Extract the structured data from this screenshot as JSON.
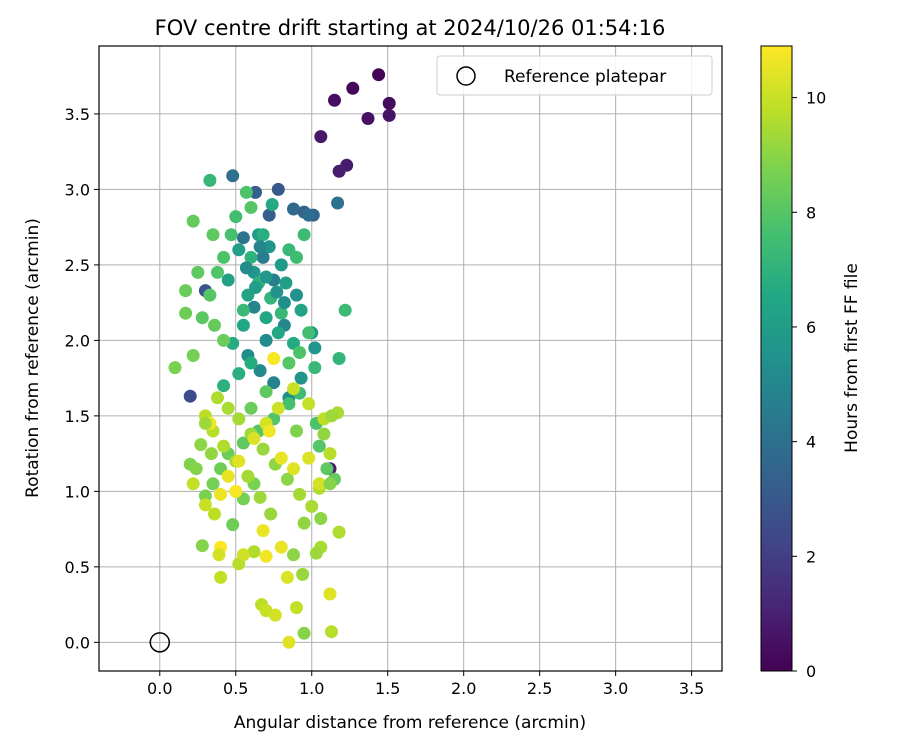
{
  "chart_data": {
    "type": "scatter",
    "title": "FOV centre drift starting at 2024/10/26 01:54:16",
    "xlabel": "Angular distance from reference (arcmin)",
    "ylabel": "Rotation from reference (arcmin)",
    "xlim": [
      -0.4,
      3.7
    ],
    "ylim": [
      -0.19,
      3.95
    ],
    "x_ticks": [
      "0.0",
      "0.5",
      "1.0",
      "1.5",
      "2.0",
      "2.5",
      "3.0",
      "3.5"
    ],
    "y_ticks": [
      "0.0",
      "0.5",
      "1.0",
      "1.5",
      "2.0",
      "2.5",
      "3.0",
      "3.5"
    ],
    "grid": true,
    "legend_position": "top-right",
    "legend": {
      "label": "Reference platepar",
      "marker": "open-circle"
    },
    "reference_point": {
      "x": 0.0,
      "y": 0.0
    },
    "colorbar": {
      "label": "Hours from first FF file",
      "range": [
        0,
        10.9
      ],
      "ticks": [
        "0",
        "2",
        "4",
        "6",
        "8",
        "10"
      ],
      "colormap": "viridis"
    },
    "series": [
      {
        "points": [
          [
            1.44,
            3.76,
            0.1
          ],
          [
            1.27,
            3.67,
            0.2
          ],
          [
            1.51,
            3.57,
            0.3
          ],
          [
            1.15,
            3.59,
            0.4
          ],
          [
            1.37,
            3.47,
            0.5
          ],
          [
            1.51,
            3.49,
            0.6
          ],
          [
            1.06,
            3.35,
            0.7
          ],
          [
            1.23,
            3.16,
            0.8
          ],
          [
            1.18,
            3.12,
            0.9
          ],
          [
            1.12,
            1.15,
            0.9
          ],
          [
            0.2,
            1.63,
            2.6
          ],
          [
            0.3,
            2.33,
            2.8
          ],
          [
            0.78,
            3.0,
            3.0
          ],
          [
            0.72,
            2.83,
            3.2
          ],
          [
            0.95,
            2.85,
            3.4
          ],
          [
            0.48,
            3.09,
            4.0
          ],
          [
            1.17,
            2.91,
            4.1
          ],
          [
            1.01,
            2.83,
            3.5
          ],
          [
            0.63,
            2.98,
            3.3
          ],
          [
            0.88,
            2.87,
            3.7
          ],
          [
            0.98,
            2.83,
            3.9
          ],
          [
            0.55,
            2.68,
            4.2
          ],
          [
            0.68,
            2.55,
            4.5
          ],
          [
            0.75,
            2.4,
            4.7
          ],
          [
            0.62,
            2.22,
            4.9
          ],
          [
            0.82,
            2.1,
            5.0
          ],
          [
            0.7,
            2.0,
            5.2
          ],
          [
            0.58,
            1.9,
            5.3
          ],
          [
            0.66,
            1.8,
            5.1
          ],
          [
            0.75,
            1.72,
            4.8
          ],
          [
            0.85,
            1.62,
            5.4
          ],
          [
            0.93,
            1.75,
            5.6
          ],
          [
            1.02,
            1.95,
            5.7
          ],
          [
            1.0,
            2.05,
            5.8
          ],
          [
            0.9,
            2.3,
            5.5
          ],
          [
            0.8,
            2.5,
            5.9
          ],
          [
            0.65,
            2.7,
            6.0
          ],
          [
            0.52,
            2.6,
            6.1
          ],
          [
            0.45,
            2.4,
            6.2
          ],
          [
            0.58,
            2.3,
            6.3
          ],
          [
            0.7,
            2.15,
            6.4
          ],
          [
            0.78,
            2.05,
            6.5
          ],
          [
            0.88,
            1.98,
            6.6
          ],
          [
            0.6,
            1.85,
            6.7
          ],
          [
            0.52,
            1.78,
            6.8
          ],
          [
            0.42,
            1.7,
            6.9
          ],
          [
            0.72,
            2.62,
            5.6
          ],
          [
            0.62,
            2.45,
            5.7
          ],
          [
            0.83,
            2.38,
            6.1
          ],
          [
            0.93,
            2.2,
            6.3
          ],
          [
            0.55,
            2.1,
            6.5
          ],
          [
            0.48,
            1.98,
            6.7
          ],
          [
            0.65,
            2.38,
            7.0
          ],
          [
            0.73,
            2.28,
            7.1
          ],
          [
            0.8,
            2.18,
            7.2
          ],
          [
            0.85,
            2.6,
            7.3
          ],
          [
            0.95,
            2.7,
            7.4
          ],
          [
            0.9,
            2.55,
            7.5
          ],
          [
            0.5,
            2.82,
            7.6
          ],
          [
            0.47,
            2.7,
            7.7
          ],
          [
            0.42,
            2.55,
            7.8
          ],
          [
            0.38,
            2.45,
            7.9
          ],
          [
            0.33,
            2.3,
            8.0
          ],
          [
            0.28,
            2.15,
            8.1
          ],
          [
            0.25,
            2.45,
            8.2
          ],
          [
            0.22,
            2.79,
            8.3
          ],
          [
            0.17,
            2.33,
            8.4
          ],
          [
            0.17,
            2.18,
            8.5
          ],
          [
            0.22,
            1.9,
            8.6
          ],
          [
            0.1,
            1.82,
            8.7
          ],
          [
            0.33,
            3.06,
            7.2
          ],
          [
            0.57,
            2.98,
            7.8
          ],
          [
            0.6,
            2.88,
            8.0
          ],
          [
            0.35,
            2.7,
            8.2
          ],
          [
            0.36,
            2.1,
            8.3
          ],
          [
            0.42,
            2.0,
            8.4
          ],
          [
            1.22,
            2.2,
            7.4
          ],
          [
            1.18,
            1.88,
            7.1
          ],
          [
            1.02,
            1.82,
            7.3
          ],
          [
            0.92,
            1.65,
            7.5
          ],
          [
            0.85,
            1.58,
            7.7
          ],
          [
            0.75,
            1.48,
            7.9
          ],
          [
            0.65,
            1.4,
            8.0
          ],
          [
            0.55,
            1.32,
            8.2
          ],
          [
            0.45,
            1.25,
            8.4
          ],
          [
            0.4,
            1.15,
            8.5
          ],
          [
            0.35,
            1.05,
            8.6
          ],
          [
            0.3,
            0.97,
            8.7
          ],
          [
            0.2,
            1.18,
            8.8
          ],
          [
            0.28,
            0.64,
            8.9
          ],
          [
            0.95,
            0.06,
            8.9
          ],
          [
            1.03,
            1.45,
            7.8
          ],
          [
            1.05,
            1.3,
            8.0
          ],
          [
            1.1,
            1.15,
            8.2
          ],
          [
            1.15,
            1.08,
            8.3
          ],
          [
            0.48,
            0.78,
            8.5
          ],
          [
            0.55,
            0.95,
            8.6
          ],
          [
            0.62,
            1.05,
            8.7
          ],
          [
            0.9,
            1.4,
            8.8
          ],
          [
            0.88,
            0.58,
            9.0
          ],
          [
            0.95,
            0.79,
            9.1
          ],
          [
            0.73,
            0.85,
            9.2
          ],
          [
            0.66,
            0.96,
            9.3
          ],
          [
            0.58,
            1.1,
            9.4
          ],
          [
            0.5,
            1.2,
            9.5
          ],
          [
            0.42,
            1.3,
            9.6
          ],
          [
            0.35,
            1.4,
            9.7
          ],
          [
            0.3,
            1.5,
            9.8
          ],
          [
            0.38,
            1.62,
            9.6
          ],
          [
            0.45,
            1.55,
            9.5
          ],
          [
            0.52,
            1.48,
            9.4
          ],
          [
            0.6,
            1.38,
            9.3
          ],
          [
            0.68,
            1.28,
            9.2
          ],
          [
            0.76,
            1.18,
            9.1
          ],
          [
            0.84,
            1.08,
            9.0
          ],
          [
            0.92,
            0.98,
            9.4
          ],
          [
            1.0,
            0.9,
            9.5
          ],
          [
            1.05,
            1.02,
            9.6
          ],
          [
            1.12,
            1.25,
            9.7
          ],
          [
            1.08,
            1.48,
            9.8
          ],
          [
            0.98,
            1.58,
            9.9
          ],
          [
            0.88,
            1.68,
            10.0
          ],
          [
            0.78,
            1.55,
            10.1
          ],
          [
            0.7,
            1.45,
            10.2
          ],
          [
            0.62,
            1.35,
            10.3
          ],
          [
            0.52,
            1.2,
            10.4
          ],
          [
            0.45,
            1.1,
            10.5
          ],
          [
            0.4,
            0.98,
            10.6
          ],
          [
            0.33,
            1.45,
            10.7
          ],
          [
            0.5,
            1.0,
            10.8
          ],
          [
            0.75,
            1.88,
            10.8
          ],
          [
            0.72,
            1.4,
            10.7
          ],
          [
            0.8,
            1.22,
            10.5
          ],
          [
            0.88,
            1.15,
            10.4
          ],
          [
            0.98,
            1.22,
            10.3
          ],
          [
            1.05,
            1.05,
            10.2
          ],
          [
            0.3,
            0.91,
            10.0
          ],
          [
            0.22,
            1.05,
            9.9
          ],
          [
            0.36,
            0.85,
            9.8
          ],
          [
            0.52,
            0.52,
            9.7
          ],
          [
            0.62,
            0.6,
            9.6
          ],
          [
            0.68,
            0.74,
            10.6
          ],
          [
            0.7,
            0.57,
            10.7
          ],
          [
            0.8,
            0.63,
            10.5
          ],
          [
            0.4,
            0.63,
            10.9
          ],
          [
            0.39,
            0.58,
            10.2
          ],
          [
            0.4,
            0.43,
            9.9
          ],
          [
            0.55,
            0.58,
            10.1
          ],
          [
            0.67,
            0.25,
            9.8
          ],
          [
            0.7,
            0.21,
            10.0
          ],
          [
            0.76,
            0.18,
            10.2
          ],
          [
            0.84,
            0.43,
            10.3
          ],
          [
            0.9,
            0.23,
            9.9
          ],
          [
            0.85,
            0.0,
            10.4
          ],
          [
            1.12,
            0.32,
            10.4
          ],
          [
            1.13,
            0.07,
            9.7
          ],
          [
            1.06,
            0.63,
            9.5
          ],
          [
            1.03,
            0.59,
            9.3
          ],
          [
            1.18,
            0.73,
            9.6
          ],
          [
            1.06,
            0.82,
            9.0
          ],
          [
            0.94,
            0.45,
            9.2
          ],
          [
            0.3,
            1.45,
            9.3
          ],
          [
            0.34,
            1.25,
            9.1
          ],
          [
            0.27,
            1.31,
            9.0
          ],
          [
            0.24,
            1.15,
            8.9
          ],
          [
            1.17,
            1.52,
            9.5
          ],
          [
            1.13,
            1.5,
            9.3
          ],
          [
            1.08,
            1.38,
            9.1
          ],
          [
            1.12,
            1.05,
            8.9
          ],
          [
            0.6,
            1.55,
            8.4
          ],
          [
            0.7,
            1.66,
            8.2
          ],
          [
            0.85,
            1.85,
            8.0
          ],
          [
            0.92,
            1.92,
            7.8
          ],
          [
            0.98,
            2.05,
            7.6
          ],
          [
            0.55,
            2.2,
            7.3
          ],
          [
            0.6,
            2.55,
            7.0
          ],
          [
            0.68,
            2.7,
            6.8
          ],
          [
            0.74,
            2.9,
            6.6
          ],
          [
            0.63,
            2.35,
            6.0
          ],
          [
            0.7,
            2.42,
            5.8
          ],
          [
            0.77,
            2.32,
            5.6
          ],
          [
            0.82,
            2.25,
            5.4
          ],
          [
            0.57,
            2.48,
            5.2
          ],
          [
            0.66,
            2.62,
            5.0
          ]
        ]
      }
    ]
  }
}
